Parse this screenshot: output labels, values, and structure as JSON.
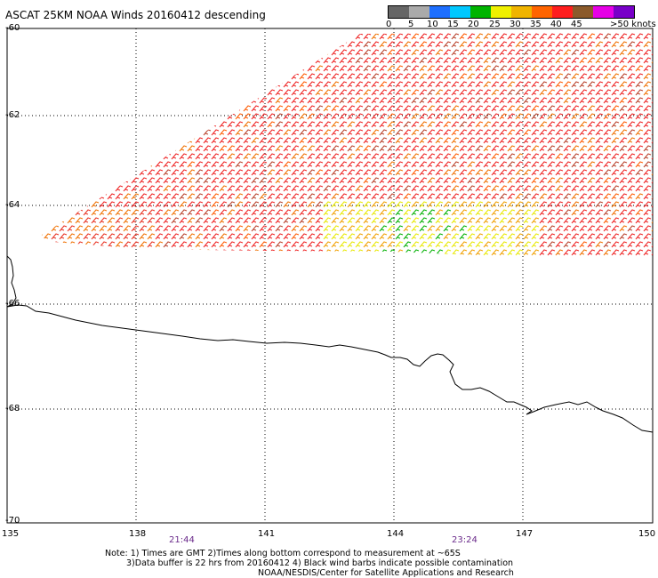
{
  "title": "ASCAT 25KM NOAA Winds 20160412 descending",
  "legend": {
    "colors": [
      "#666666",
      "#aaaaaa",
      "#1e6fff",
      "#00c8ff",
      "#00b400",
      "#f0f000",
      "#f0b400",
      "#ff6400",
      "#ff1e1e",
      "#8b5a2b",
      "#e600e6",
      "#7800c8"
    ],
    "labels": [
      "0",
      "5",
      "10",
      "15",
      "20",
      "25",
      "30",
      "35",
      "40",
      "45",
      ">50 knots"
    ]
  },
  "axes": {
    "y_labels": [
      "-60",
      "-62",
      "-64",
      "-66",
      "-68",
      "-70"
    ],
    "x_labels": [
      "135",
      "138",
      "141",
      "144",
      "147",
      "150"
    ]
  },
  "times": [
    "21:44",
    "23:24"
  ],
  "notes": [
    "Note: 1) Times are GMT 2)Times along bottom correspond to measurement at ~65S",
    "3)Data buffer is 22 hrs from 20160412 4) Black wind barbs indicate possible contamination",
    "NOAA/NESDIS/Center for Satellite Applications and Research"
  ]
}
